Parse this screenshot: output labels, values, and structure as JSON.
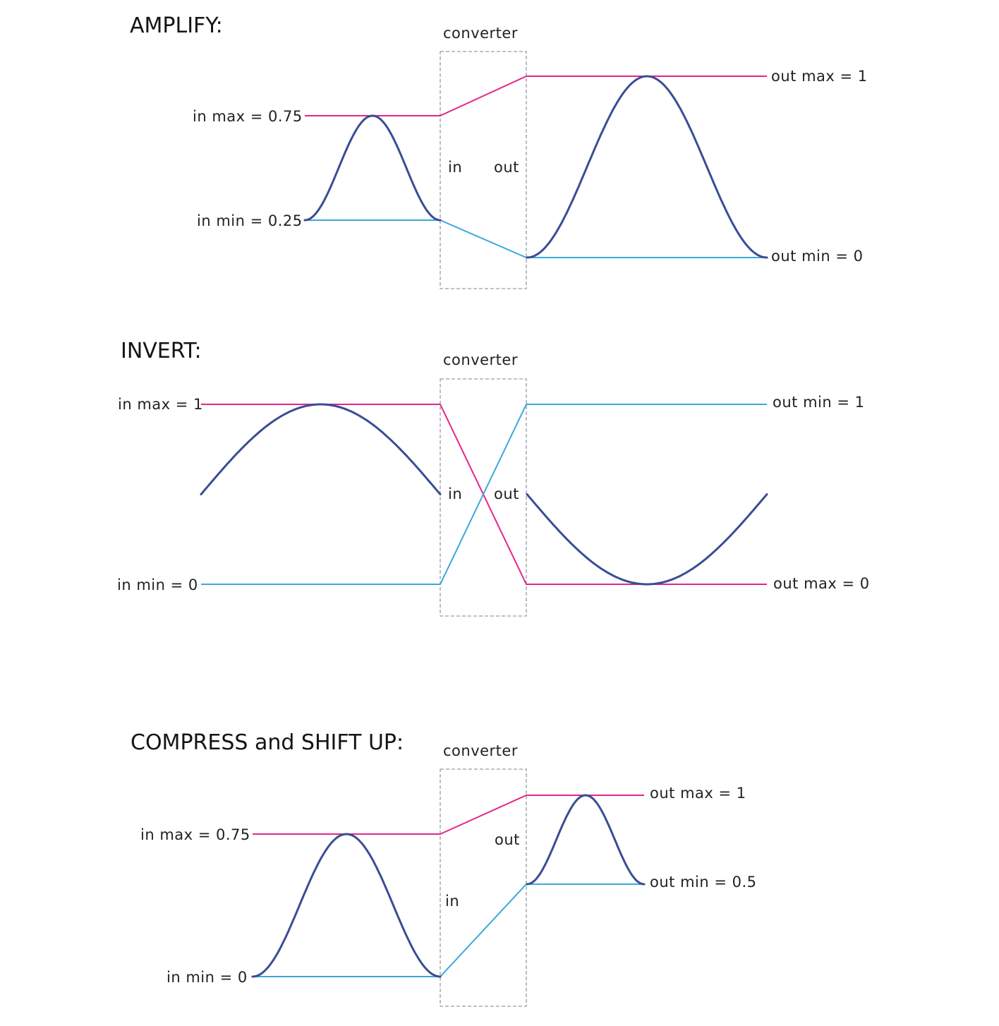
{
  "colors": {
    "max_line": "#e3268a",
    "min_line": "#3ba8dd",
    "wave": "#3a4d94"
  },
  "panels": [
    {
      "title": "AMPLIFY:",
      "converter_label": "converter",
      "in_label": "in",
      "out_label": "out",
      "in_max_label": "in max = 0.75",
      "in_min_label": "in min = 0.25",
      "out_max_label": "out max = 1",
      "out_min_label": "out min = 0"
    },
    {
      "title": "INVERT:",
      "converter_label": "converter",
      "in_label": "in",
      "out_label": "out",
      "in_max_label": "in max = 1",
      "in_min_label": "in min = 0",
      "out_max_label": "out max = 0",
      "out_min_label": "out min = 1"
    },
    {
      "title": "COMPRESS and SHIFT UP:",
      "converter_label": "converter",
      "in_label": "in",
      "out_label": "out",
      "in_max_label": "in max = 0.75",
      "in_min_label": "in min = 0",
      "out_max_label": "out max = 1",
      "out_min_label": "out min = 0.5"
    }
  ]
}
